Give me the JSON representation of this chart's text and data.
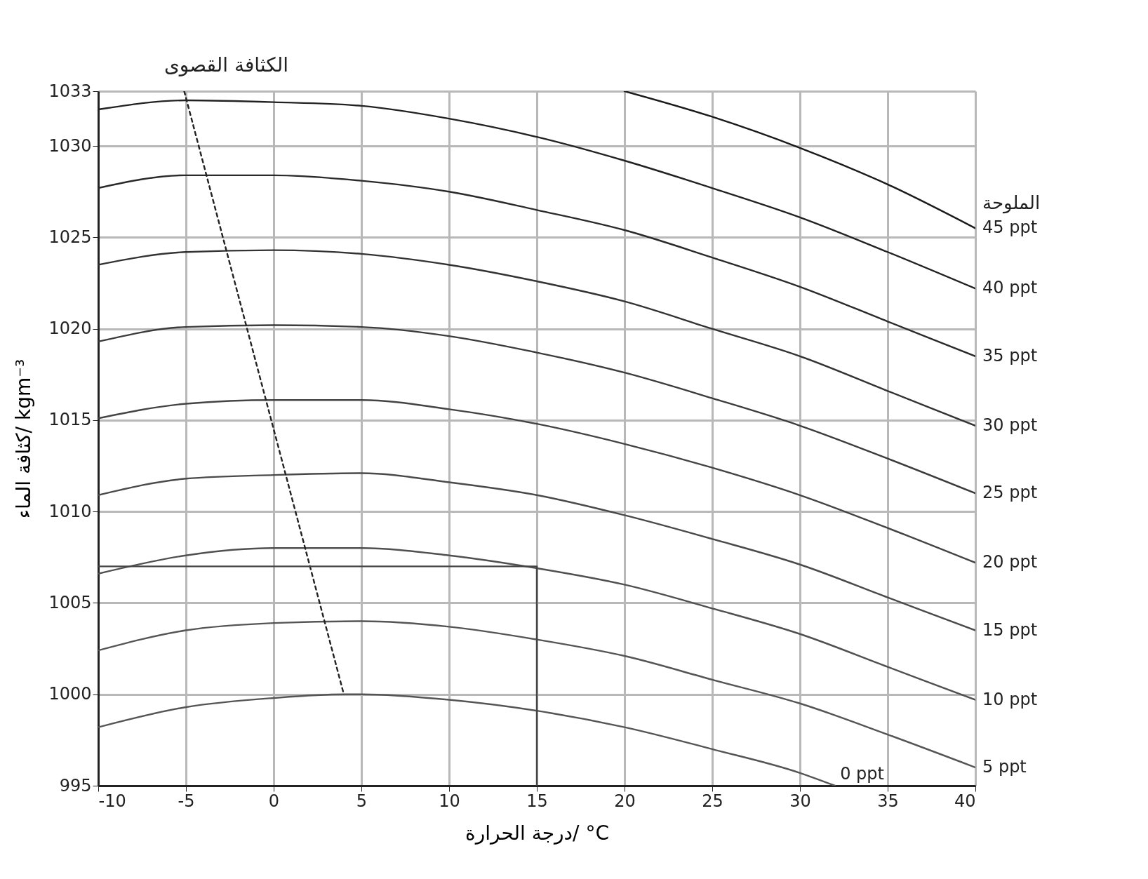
{
  "chart_data": {
    "type": "line",
    "xlabel": "درجة الحرارة/ °C",
    "ylabel": "كثافة الماء/ kgm⁻³",
    "legend_title": "الملوحة",
    "annotations": [
      {
        "text": "الكثافة القصوى",
        "x": -5.1,
        "y": 1033
      }
    ],
    "xlim": [
      -10,
      40
    ],
    "xticks": [
      -10,
      -5,
      0,
      5,
      10,
      15,
      20,
      25,
      30,
      35,
      40
    ],
    "ylim": [
      995,
      1033
    ],
    "yticks": [
      995,
      1000,
      1005,
      1010,
      1015,
      1020,
      1025,
      1030,
      1033
    ],
    "grid": true,
    "marker": "none",
    "line_style": "solid",
    "x": [
      -10,
      -5,
      0,
      5,
      10,
      15,
      20,
      25,
      30,
      35,
      40
    ],
    "series": [
      {
        "name": "0 ppt",
        "color": "#555555",
        "x": [
          -10,
          -5,
          0,
          4,
          5,
          10,
          15,
          20,
          25,
          30,
          32
        ],
        "values": [
          998.2,
          999.3,
          999.8,
          1000.0,
          1000.0,
          999.7,
          999.1,
          998.2,
          997.0,
          995.7,
          995.0
        ]
      },
      {
        "name": "5 ppt",
        "color": "#555555",
        "values": [
          1002.4,
          1003.5,
          1003.9,
          1004.0,
          1003.7,
          1003.0,
          1002.1,
          1000.8,
          999.5,
          997.8,
          996.0
        ]
      },
      {
        "name": "10 ppt",
        "color": "#505050",
        "values": [
          1006.6,
          1007.6,
          1008.0,
          1008.0,
          1007.6,
          1006.9,
          1006.0,
          1004.7,
          1003.3,
          1001.5,
          999.7
        ]
      },
      {
        "name": "15 ppt",
        "color": "#4a4a4a",
        "values": [
          1010.9,
          1011.8,
          1012.0,
          1012.1,
          1011.6,
          1010.9,
          1009.8,
          1008.5,
          1007.1,
          1005.3,
          1003.5
        ]
      },
      {
        "name": "20 ppt",
        "color": "#444444",
        "values": [
          1015.1,
          1015.9,
          1016.1,
          1016.1,
          1015.6,
          1014.8,
          1013.7,
          1012.4,
          1010.9,
          1009.1,
          1007.2
        ]
      },
      {
        "name": "25 ppt",
        "color": "#3c3c3c",
        "values": [
          1019.3,
          1020.1,
          1020.2,
          1020.1,
          1019.6,
          1018.7,
          1017.6,
          1016.2,
          1014.7,
          1012.9,
          1011.0
        ]
      },
      {
        "name": "30 ppt",
        "color": "#333333",
        "values": [
          1023.5,
          1024.2,
          1024.3,
          1024.1,
          1023.5,
          1022.6,
          1021.5,
          1020.0,
          1018.5,
          1016.6,
          1014.7
        ]
      },
      {
        "name": "35 ppt",
        "color": "#2a2a2a",
        "values": [
          1027.7,
          1028.4,
          1028.4,
          1028.1,
          1027.5,
          1026.5,
          1025.4,
          1023.9,
          1022.3,
          1020.4,
          1018.5
        ]
      },
      {
        "name": "40 ppt",
        "color": "#222222",
        "values": [
          1032.0,
          1032.5,
          1032.4,
          1032.2,
          1031.5,
          1030.5,
          1029.2,
          1027.7,
          1026.1,
          1024.2,
          1022.2
        ]
      },
      {
        "name": "45 ppt",
        "color": "#1a1a1a",
        "x": [
          20,
          25,
          30,
          35,
          40
        ],
        "values": [
          1033.0,
          1031.6,
          1029.9,
          1027.9,
          1025.5
        ]
      },
      {
        "color": "#222222",
        "line_style": "dashed",
        "x": [
          -5.1,
          4
        ],
        "values": [
          1033,
          1000
        ]
      },
      {
        "color": "#444444",
        "x": [
          -10,
          15,
          15
        ],
        "values": [
          1007,
          1007,
          995
        ]
      }
    ]
  }
}
